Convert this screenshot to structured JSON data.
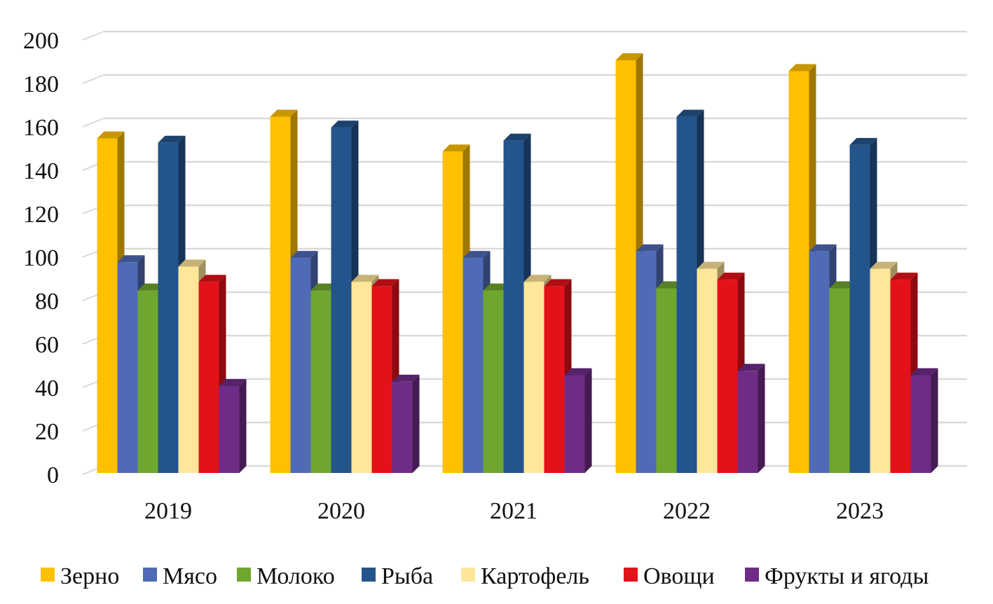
{
  "chart_data": {
    "type": "bar",
    "style": "3d-clustered-column",
    "categories": [
      "2019",
      "2020",
      "2021",
      "2022",
      "2023"
    ],
    "ylim": [
      0,
      200
    ],
    "yticks": [
      0,
      20,
      40,
      60,
      80,
      100,
      120,
      140,
      160,
      180,
      200
    ],
    "grid": true,
    "legend": "bottom",
    "series": [
      {
        "name": "Зерно",
        "color": "#FFC000",
        "values": [
          154,
          164,
          148,
          190,
          185
        ]
      },
      {
        "name": "Мясо",
        "color": "#4F6BB5",
        "values": [
          97,
          99,
          99,
          102,
          102
        ]
      },
      {
        "name": "Молоко",
        "color": "#6FA62F",
        "values": [
          84,
          84,
          84,
          85,
          85
        ]
      },
      {
        "name": "Рыба",
        "color": "#24548C",
        "values": [
          152,
          159,
          153,
          164,
          151
        ]
      },
      {
        "name": "Картофель",
        "color": "#FFE699",
        "values": [
          95,
          88,
          88,
          94,
          94
        ]
      },
      {
        "name": "Овощи",
        "color": "#E3121A",
        "values": [
          88,
          86,
          86,
          89,
          89
        ]
      },
      {
        "name": "Фрукты и ягоды",
        "color": "#6E2C86",
        "values": [
          40,
          42,
          45,
          47,
          45
        ]
      }
    ]
  }
}
